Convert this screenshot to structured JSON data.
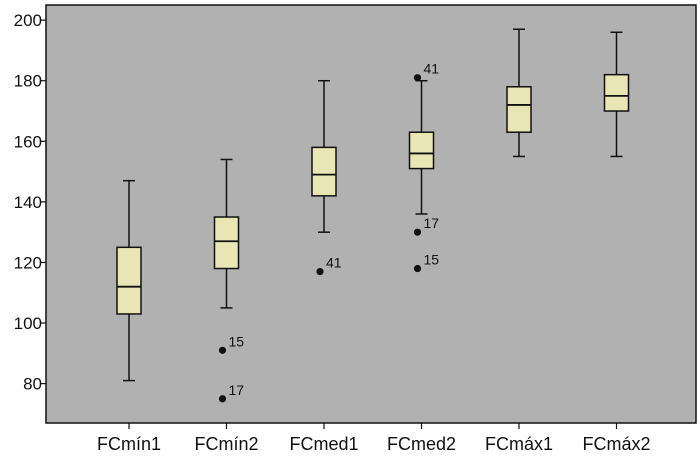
{
  "chart_data": {
    "type": "box",
    "title": "",
    "xlabel": "",
    "ylabel": "",
    "ylim": [
      67,
      205
    ],
    "yticks": [
      80,
      100,
      120,
      140,
      160,
      180,
      200
    ],
    "grid": false,
    "categories": [
      "FCmín1",
      "FCmín2",
      "FCmed1",
      "FCmed2",
      "FCmáx1",
      "FCmáx2"
    ],
    "boxes": [
      {
        "category": "FCmín1",
        "whisker_low": 81,
        "q1": 103,
        "median": 112,
        "q3": 125,
        "whisker_high": 147,
        "outliers": []
      },
      {
        "category": "FCmín2",
        "whisker_low": 105,
        "q1": 118,
        "median": 127,
        "q3": 135,
        "whisker_high": 154,
        "outliers": [
          {
            "value": 91,
            "label": "15"
          },
          {
            "value": 75,
            "label": "17"
          }
        ]
      },
      {
        "category": "FCmed1",
        "whisker_low": 130,
        "q1": 142,
        "median": 149,
        "q3": 158,
        "whisker_high": 180,
        "outliers": [
          {
            "value": 117,
            "label": "41"
          }
        ]
      },
      {
        "category": "FCmed2",
        "whisker_low": 136,
        "q1": 151,
        "median": 156,
        "q3": 163,
        "whisker_high": 180,
        "outliers": [
          {
            "value": 181,
            "label": "41"
          },
          {
            "value": 130,
            "label": "17"
          },
          {
            "value": 118,
            "label": "15"
          }
        ]
      },
      {
        "category": "FCmáx1",
        "whisker_low": 155,
        "q1": 163,
        "median": 172,
        "q3": 178,
        "whisker_high": 197,
        "outliers": []
      },
      {
        "category": "FCmáx2",
        "whisker_low": 155,
        "q1": 170,
        "median": 175,
        "q3": 182,
        "whisker_high": 196,
        "outliers": []
      }
    ],
    "colors": {
      "plot_background": "#b1b1b1",
      "box_fill": "#e8e6b4",
      "line": "#111111"
    }
  }
}
